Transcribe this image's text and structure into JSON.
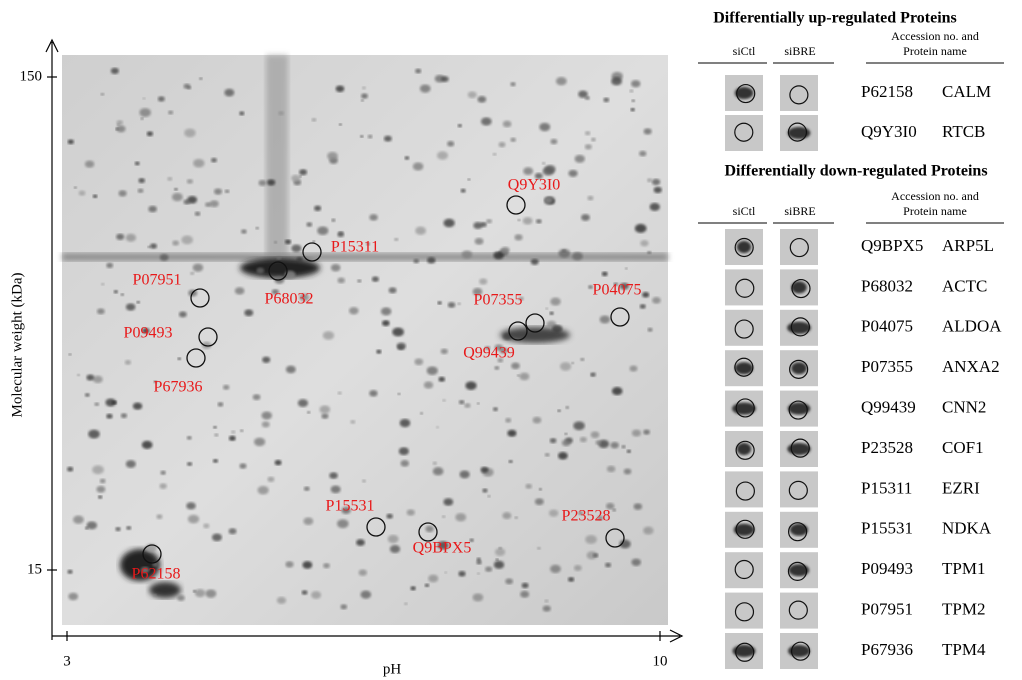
{
  "gel": {
    "y_axis_label": "Molecular weight (kDa)",
    "x_axis_label": "pH",
    "y_ticks": [
      "150",
      "15"
    ],
    "x_ticks": [
      "3",
      "10"
    ],
    "spots": [
      {
        "label": "Q9Y3I0"
      },
      {
        "label": "P15311"
      },
      {
        "label": "P07951"
      },
      {
        "label": "P68032"
      },
      {
        "label": "P09493"
      },
      {
        "label": "P67936"
      },
      {
        "label": "P07355"
      },
      {
        "label": "Q99439"
      },
      {
        "label": "P04075"
      },
      {
        "label": "P15531"
      },
      {
        "label": "Q9BPX5"
      },
      {
        "label": "P23528"
      },
      {
        "label": "P62158"
      }
    ]
  },
  "up_regulated": {
    "title": "Differentially up-regulated  Proteins",
    "headers": {
      "sictl": "siCtl",
      "sibre": "siBRE",
      "accession": [
        "Accession no. and",
        "Protein name"
      ]
    },
    "rows": [
      {
        "accession": "P62158",
        "name": "CALM"
      },
      {
        "accession": "Q9Y3I0",
        "name": "RTCB"
      }
    ]
  },
  "down_regulated": {
    "title": "Differentially down-regulated  Proteins",
    "headers": {
      "sictl": "siCtl",
      "sibre": "siBRE",
      "accession": [
        "Accession no. and",
        "Protein name"
      ]
    },
    "rows": [
      {
        "accession": "Q9BPX5",
        "name": "ARP5L"
      },
      {
        "accession": "P68032",
        "name": "ACTC"
      },
      {
        "accession": "P04075",
        "name": "ALDOA"
      },
      {
        "accession": "P07355",
        "name": "ANXA2"
      },
      {
        "accession": "Q99439",
        "name": "CNN2"
      },
      {
        "accession": "P23528",
        "name": "COF1"
      },
      {
        "accession": "P15311",
        "name": "EZRI"
      },
      {
        "accession": "P15531",
        "name": "NDKA"
      },
      {
        "accession": "P09493",
        "name": "TPM1"
      },
      {
        "accession": "P07951",
        "name": "TPM2"
      },
      {
        "accession": "P67936",
        "name": "TPM4"
      }
    ]
  }
}
